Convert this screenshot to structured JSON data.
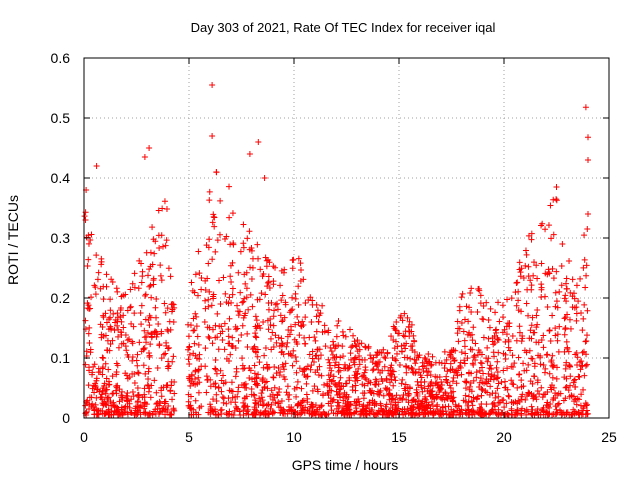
{
  "chart_data": {
    "type": "scatter",
    "title": "Day 303 of 2021, Rate Of TEC Index for receiver iqal",
    "xlabel": "GPS time / hours",
    "ylabel": "ROTI / TECUs",
    "xlim": [
      0,
      25
    ],
    "ylim": [
      0,
      0.6
    ],
    "xticks": [
      0,
      5,
      10,
      15,
      20,
      25
    ],
    "yticks": [
      0,
      0.1,
      0.2,
      0.3,
      0.4,
      0.5,
      0.6
    ],
    "xtick_labels": [
      "0",
      "5",
      "10",
      "15",
      "20",
      "25"
    ],
    "ytick_labels": [
      "0",
      "0.1",
      "0.2",
      "0.3",
      "0.4",
      "0.5",
      "0.6"
    ],
    "grid": true,
    "marker": "+",
    "color": "#ff0000",
    "envelope": {
      "description": "Approximate upper bound of the ROTI point cloud along GPS time",
      "x": [
        0,
        0.5,
        1,
        1.5,
        2,
        2.5,
        3,
        3.5,
        4,
        4.3,
        5,
        5.5,
        6,
        6.5,
        7,
        7.5,
        8,
        8.5,
        9,
        9.5,
        10,
        10.5,
        11,
        11.5,
        12,
        12.5,
        13,
        13.5,
        14,
        14.5,
        15,
        15.5,
        16,
        16.5,
        17,
        17.5,
        18,
        18.5,
        19,
        19.5,
        20,
        20.5,
        21,
        21.5,
        22,
        22.5,
        23,
        23.5,
        24
      ],
      "y": [
        0.37,
        0.28,
        0.25,
        0.22,
        0.2,
        0.25,
        0.28,
        0.35,
        0.36,
        0.2,
        0.2,
        0.3,
        0.42,
        0.4,
        0.38,
        0.34,
        0.3,
        0.27,
        0.25,
        0.24,
        0.28,
        0.24,
        0.2,
        0.18,
        0.16,
        0.15,
        0.13,
        0.12,
        0.11,
        0.12,
        0.18,
        0.16,
        0.12,
        0.1,
        0.1,
        0.12,
        0.2,
        0.25,
        0.22,
        0.18,
        0.2,
        0.24,
        0.28,
        0.33,
        0.36,
        0.36,
        0.3,
        0.28,
        0.33
      ]
    },
    "outliers": {
      "x": [
        0.1,
        0.6,
        2.9,
        3.1,
        6.1,
        6.1,
        6.3,
        7.9,
        8.3,
        8.6,
        22.5,
        23.9,
        24.0,
        24.0,
        24.0
      ],
      "y": [
        0.38,
        0.42,
        0.435,
        0.45,
        0.555,
        0.47,
        0.41,
        0.44,
        0.46,
        0.4,
        0.385,
        0.518,
        0.468,
        0.43,
        0.34
      ]
    }
  }
}
